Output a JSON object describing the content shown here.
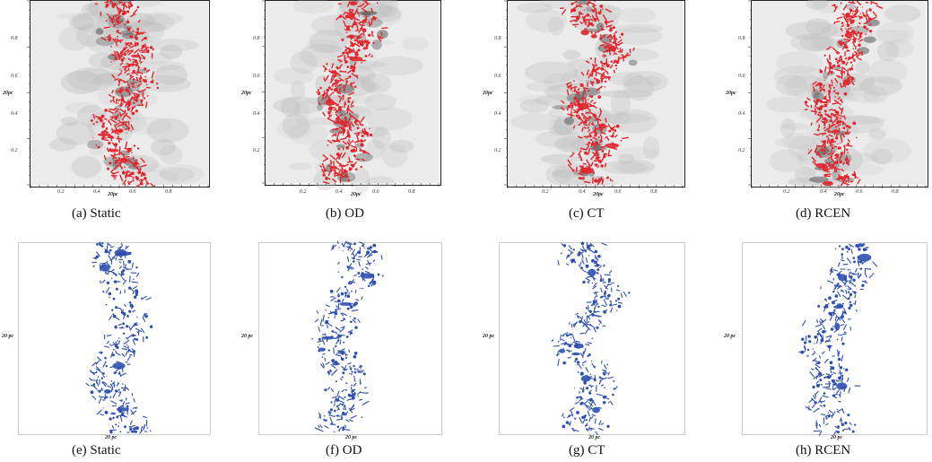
{
  "row1": {
    "axis_label": "20pc",
    "panels": [
      {
        "id": "a",
        "caption": "(a) Static",
        "x_ticks": [
          "0.2",
          "0.4",
          "0.6",
          "0.8"
        ],
        "y_ticks": [
          "0.8",
          "0.6",
          "0.4",
          "0.2"
        ],
        "line_color": "#e2252c"
      },
      {
        "id": "b",
        "caption": "(b) OD",
        "x_ticks": [
          "0.2",
          "0.4",
          "0.6",
          "0.8"
        ],
        "y_ticks": [
          "0.8",
          "0.6",
          "0.4",
          "0.2"
        ],
        "line_color": "#e2252c"
      },
      {
        "id": "c",
        "caption": "(c) CT",
        "x_ticks": [
          "0.2",
          "0.4",
          "0.6",
          "0.8"
        ],
        "y_ticks": [
          "0.8",
          "0.6",
          "0.4",
          "0.2"
        ],
        "line_color": "#e2252c"
      },
      {
        "id": "d",
        "caption": "(d) RCEN",
        "x_ticks": [
          "0.2",
          "0.4",
          "0.6",
          "0.8"
        ],
        "y_ticks": [
          "0.8",
          "0.6",
          "0.4",
          "0.2"
        ],
        "line_color": "#e2252c"
      }
    ]
  },
  "row2": {
    "axis_label": "20 pc",
    "panels": [
      {
        "id": "e",
        "caption": "(e) Static",
        "line_color": "#2e4fb0"
      },
      {
        "id": "f",
        "caption": "(f) OD",
        "line_color": "#2e4fb0"
      },
      {
        "id": "g",
        "caption": "(g) CT",
        "line_color": "#2e4fb0"
      },
      {
        "id": "h",
        "caption": "(h) RCEN",
        "line_color": "#2e4fb0"
      }
    ]
  }
}
